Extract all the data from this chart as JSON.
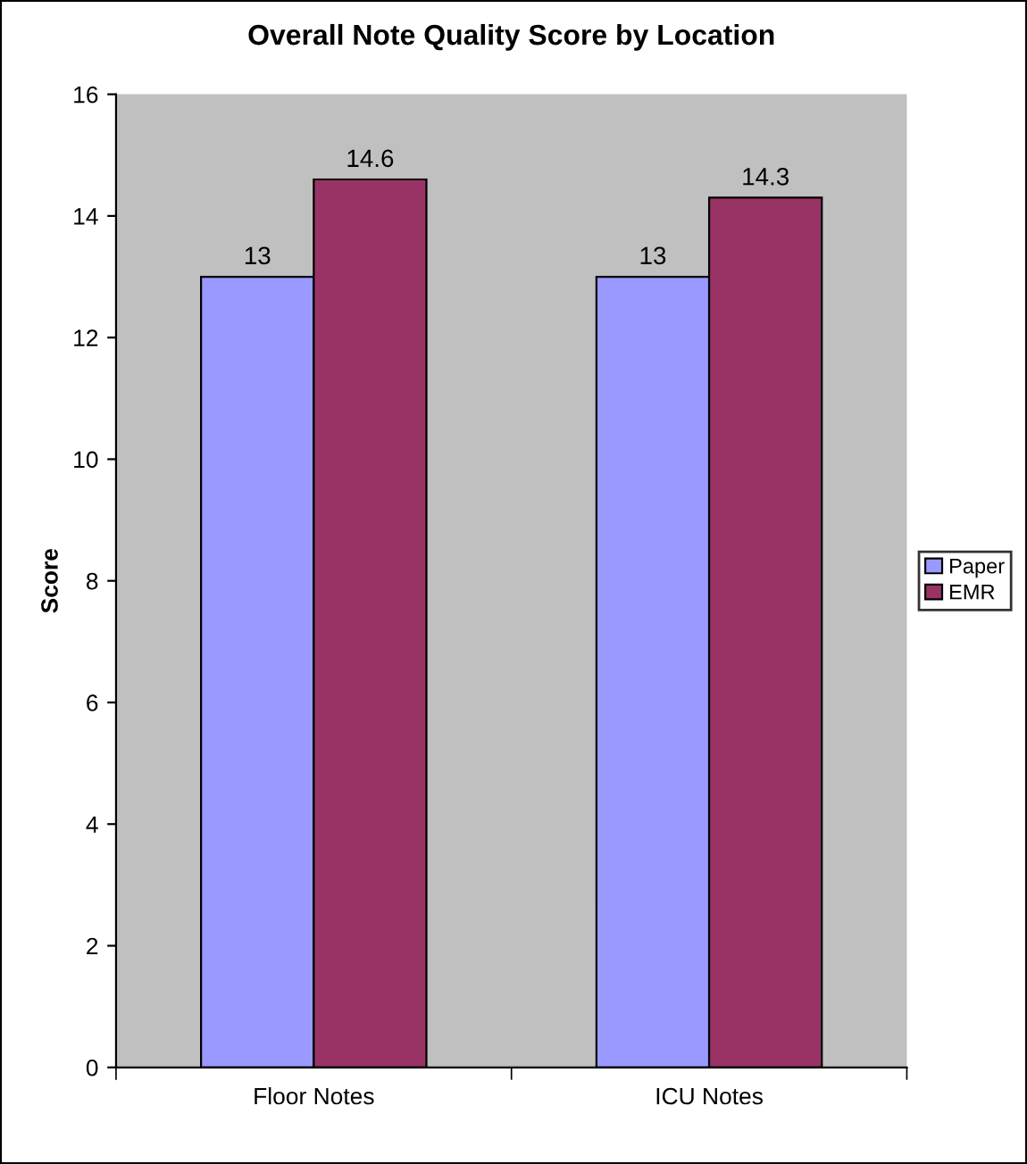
{
  "chart_data": {
    "type": "bar",
    "title": "Overall Note Quality Score by Location",
    "ylabel": "Score",
    "categories": [
      "Floor Notes",
      "ICU Notes"
    ],
    "series": [
      {
        "name": "Paper",
        "color": "#9999ff",
        "values": [
          13,
          13
        ]
      },
      {
        "name": "EMR",
        "color": "#993366",
        "values": [
          14.6,
          14.3
        ]
      }
    ],
    "ylim": [
      0,
      16
    ],
    "yticks": [
      0,
      2,
      4,
      6,
      8,
      10,
      12,
      14,
      16
    ],
    "grid": false,
    "legend": "right",
    "data_labels": true
  }
}
